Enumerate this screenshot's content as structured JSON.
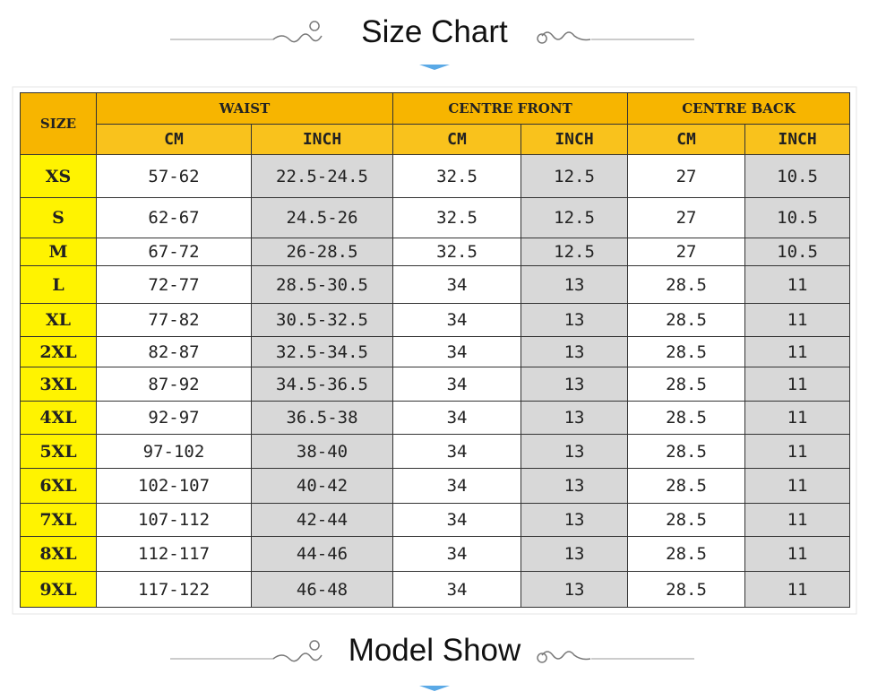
{
  "header": {
    "title": "Size Chart"
  },
  "table": {
    "size_label": "SIZE",
    "groups": [
      {
        "label": "WAIST",
        "columns": [
          "CM",
          "INCH"
        ]
      },
      {
        "label": "CENTRE FRONT",
        "columns": [
          "CM",
          "INCH"
        ]
      },
      {
        "label": "CENTRE BACK",
        "columns": [
          "CM",
          "INCH"
        ]
      }
    ],
    "rows": [
      [
        "XS",
        "57-62",
        "22.5-24.5",
        "32.5",
        "12.5",
        "27",
        "10.5"
      ],
      [
        "S",
        "62-67",
        "24.5-26",
        "32.5",
        "12.5",
        "27",
        "10.5"
      ],
      [
        "M",
        "67-72",
        "26-28.5",
        "32.5",
        "12.5",
        "27",
        "10.5"
      ],
      [
        "L",
        "72-77",
        "28.5-30.5",
        "34",
        "13",
        "28.5",
        "11"
      ],
      [
        "XL",
        "77-82",
        "30.5-32.5",
        "34",
        "13",
        "28.5",
        "11"
      ],
      [
        "2XL",
        "82-87",
        "32.5-34.5",
        "34",
        "13",
        "28.5",
        "11"
      ],
      [
        "3XL",
        "87-92",
        "34.5-36.5",
        "34",
        "13",
        "28.5",
        "11"
      ],
      [
        "4XL",
        "92-97",
        "36.5-38",
        "34",
        "13",
        "28.5",
        "11"
      ],
      [
        "5XL",
        "97-102",
        "38-40",
        "34",
        "13",
        "28.5",
        "11"
      ],
      [
        "6XL",
        "102-107",
        "40-42",
        "34",
        "13",
        "28.5",
        "11"
      ],
      [
        "7XL",
        "107-112",
        "42-44",
        "34",
        "13",
        "28.5",
        "11"
      ],
      [
        "8XL",
        "112-117",
        "44-46",
        "34",
        "13",
        "28.5",
        "11"
      ],
      [
        "9XL",
        "117-122",
        "46-48",
        "34",
        "13",
        "28.5",
        "11"
      ]
    ]
  },
  "footer": {
    "title": "Model Show"
  }
}
